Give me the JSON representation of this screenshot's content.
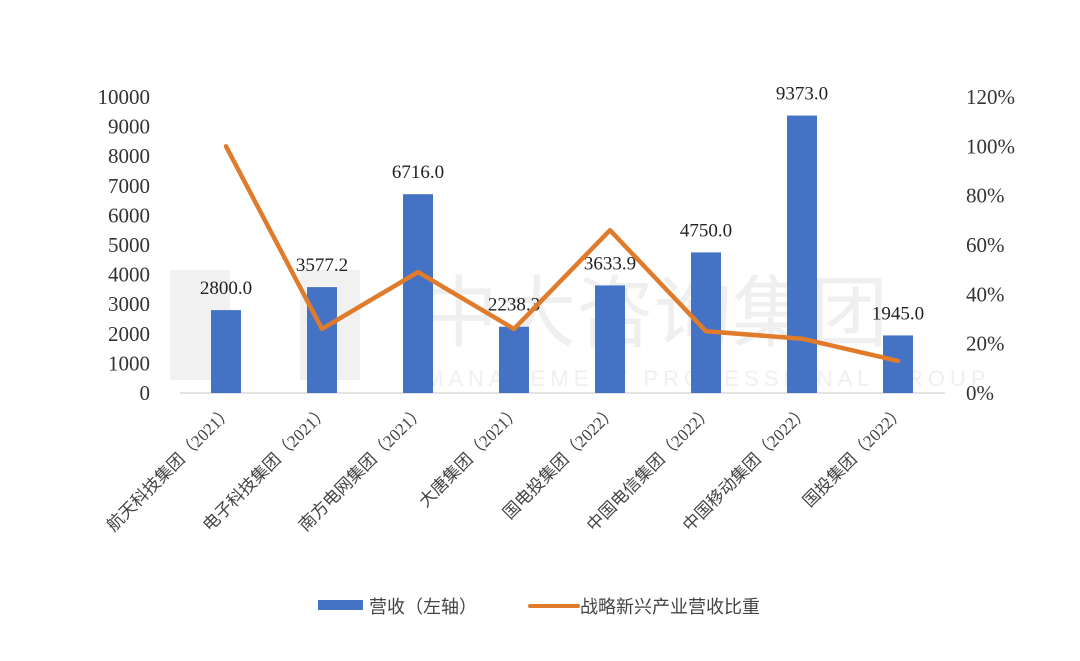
{
  "chart_data": {
    "type": "bar+line",
    "title": "",
    "categories": [
      "航天科技集团（2021）",
      "电子科技集团（2021）",
      "南方电网集团（2021）",
      "大唐集团（2021）",
      "国电投集团（2022）",
      "中国电信集团（2022）",
      "中国移动集团（2022）",
      "国投集团（2022）"
    ],
    "series": [
      {
        "name": "营收（左轴）",
        "type": "bar",
        "axis": "left",
        "color": "#4472C4",
        "values": [
          2800.0,
          3577.2,
          6716.0,
          2238.3,
          3633.9,
          4750.0,
          9373.0,
          1945.0
        ],
        "labels": [
          "2800.0",
          "3577.2",
          "6716.0",
          "2238.3",
          "3633.9",
          "4750.0",
          "9373.0",
          "1945.0"
        ]
      },
      {
        "name": "战略新兴产业营收比重",
        "type": "line",
        "axis": "right",
        "color": "#E07B2B",
        "values": [
          1.0,
          0.26,
          0.49,
          0.26,
          0.66,
          0.25,
          0.22,
          0.13
        ]
      }
    ],
    "left_axis": {
      "ylim": [
        0,
        10000
      ],
      "ticks": [
        "0",
        "1000",
        "2000",
        "3000",
        "4000",
        "5000",
        "6000",
        "7000",
        "8000",
        "9000",
        "10000"
      ]
    },
    "right_axis": {
      "ylim": [
        0,
        1.2
      ],
      "ticks": [
        "0%",
        "20%",
        "40%",
        "60%",
        "80%",
        "100%",
        "120%"
      ]
    },
    "xlabel": "",
    "ylabel": "",
    "grid": false,
    "legend_position": "bottom"
  },
  "legend": {
    "bar_label": "营收（左轴）",
    "line_label": "战略新兴产业营收比重"
  },
  "watermark": {
    "text_cn": "中大咨询集团",
    "text_en": "MANAGEMENT PROFESSIONAL GROUP",
    "logo": "MP"
  }
}
